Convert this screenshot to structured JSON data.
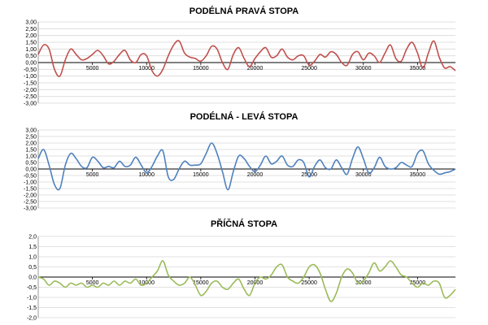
{
  "chart_data": [
    {
      "type": "line",
      "title": "PODÉLNÁ PRAVÁ STOPA",
      "xlabel": "",
      "ylabel": "",
      "xlim": [
        0,
        38500
      ],
      "ylim": [
        -3.0,
        3.0
      ],
      "yticks": [
        3.0,
        2.5,
        2.0,
        1.5,
        1.0,
        0.5,
        0.0,
        -0.5,
        -1.0,
        -1.5,
        -2.0,
        -2.5,
        -3.0
      ],
      "ytick_labels": [
        "3,00",
        "2,50",
        "2,00",
        "1,50",
        "1,00",
        "0,50",
        "0,00",
        "-0,50",
        "-1,00",
        "-1,50",
        "-2,00",
        "-2,50",
        "-3,00"
      ],
      "xticks": [
        5000,
        10000,
        15000,
        20000,
        25000,
        30000,
        35000
      ],
      "xtick_labels": [
        "5000",
        "10000",
        "15000",
        "20000",
        "25000",
        "30000",
        "35000"
      ],
      "grid": true,
      "color": "#c0504d",
      "series": [
        {
          "x": [
            0,
            500,
            1000,
            1500,
            2000,
            2500,
            3000,
            3500,
            4000,
            4500,
            5000,
            5500,
            6000,
            6500,
            7000,
            7500,
            8000,
            8500,
            9000,
            9500,
            10000,
            10500,
            11000,
            11500,
            12000,
            12500,
            13000,
            13500,
            14000,
            14500,
            15000,
            15500,
            16000,
            16500,
            17000,
            17500,
            18000,
            18500,
            19000,
            19500,
            20000,
            20500,
            21000,
            21500,
            22000,
            22500,
            23000,
            23500,
            24000,
            24500,
            25000,
            25500,
            26000,
            26500,
            27000,
            27500,
            28000,
            28500,
            29000,
            29500,
            30000,
            30500,
            31000,
            31500,
            32000,
            32500,
            33000,
            33500,
            34000,
            34500,
            35000,
            35500,
            36000,
            36500,
            37000,
            37500,
            38000,
            38500
          ],
          "y": [
            0.6,
            1.3,
            1.0,
            -0.5,
            -1.0,
            0.2,
            1.0,
            0.6,
            0.2,
            0.3,
            0.6,
            0.9,
            0.5,
            -0.1,
            0.1,
            0.6,
            0.9,
            0.2,
            0.0,
            0.6,
            0.5,
            -0.6,
            -1.0,
            -0.5,
            0.5,
            1.3,
            1.6,
            0.7,
            0.4,
            0.3,
            0.1,
            0.5,
            1.2,
            1.0,
            0.0,
            -0.5,
            0.6,
            1.1,
            0.3,
            -0.3,
            0.3,
            0.8,
            1.1,
            0.4,
            0.5,
            1.0,
            0.4,
            0.2,
            0.5,
            0.5,
            -0.2,
            0.1,
            0.6,
            0.4,
            0.8,
            0.6,
            0.0,
            -0.2,
            0.6,
            0.8,
            0.2,
            0.7,
            0.5,
            0.0,
            0.7,
            1.3,
            0.3,
            0.1,
            1.0,
            1.5,
            0.7,
            -0.4,
            0.7,
            1.6,
            0.4,
            -0.4,
            -0.3,
            -0.6
          ]
        }
      ]
    },
    {
      "type": "line",
      "title": "PODÉLNÁ - LEVÁ STOPA",
      "xlabel": "",
      "ylabel": "",
      "xlim": [
        0,
        38500
      ],
      "ylim": [
        -3.0,
        3.0
      ],
      "yticks": [
        3.0,
        2.5,
        2.0,
        1.5,
        1.0,
        0.5,
        0.0,
        -0.5,
        -1.0,
        -1.5,
        -2.0,
        -2.5,
        -3.0
      ],
      "ytick_labels": [
        "3,00",
        "2,50",
        "2,00",
        "1,50",
        "1,00",
        "0,50",
        "0,00",
        "-0,50",
        "-1,00",
        "-1,50",
        "-2,00",
        "-2,50",
        "-3,00"
      ],
      "xticks": [
        5000,
        10000,
        15000,
        20000,
        25000,
        30000,
        35000
      ],
      "xtick_labels": [
        "5000",
        "10000",
        "15000",
        "20000",
        "25000",
        "30000",
        "35000"
      ],
      "grid": true,
      "color": "#4f81bd",
      "series": [
        {
          "x": [
            0,
            500,
            1000,
            1500,
            2000,
            2500,
            3000,
            3500,
            4000,
            4500,
            5000,
            5500,
            6000,
            6500,
            7000,
            7500,
            8000,
            8500,
            9000,
            9500,
            10000,
            10500,
            11000,
            11500,
            12000,
            12500,
            13000,
            13500,
            14000,
            14500,
            15000,
            15500,
            16000,
            16500,
            17000,
            17500,
            18000,
            18500,
            19000,
            19500,
            20000,
            20500,
            21000,
            21500,
            22000,
            22500,
            23000,
            23500,
            24000,
            24500,
            25000,
            25500,
            26000,
            26500,
            27000,
            27500,
            28000,
            28500,
            29000,
            29500,
            30000,
            30500,
            31000,
            31500,
            32000,
            32500,
            33000,
            33500,
            34000,
            34500,
            35000,
            35500,
            36000,
            36500,
            37000,
            37500,
            38000,
            38500
          ],
          "y": [
            0.8,
            1.5,
            0.3,
            -1.2,
            -1.5,
            0.3,
            1.2,
            0.8,
            0.2,
            0.1,
            0.9,
            0.6,
            0.1,
            0.2,
            0.1,
            0.6,
            0.2,
            0.3,
            0.9,
            0.3,
            -0.3,
            0.2,
            1.0,
            1.4,
            -0.6,
            -0.8,
            0.0,
            0.6,
            0.3,
            0.3,
            0.4,
            1.2,
            2.0,
            1.2,
            -0.2,
            -1.6,
            -0.2,
            1.0,
            0.8,
            0.2,
            -0.2,
            0.3,
            1.0,
            0.4,
            0.6,
            1.0,
            0.3,
            0.2,
            0.7,
            0.5,
            -0.6,
            0.2,
            0.7,
            0.1,
            0.0,
            0.7,
            0.1,
            -0.4,
            0.8,
            1.7,
            0.8,
            -0.3,
            0.1,
            0.9,
            0.2,
            0.0,
            0.1,
            0.5,
            0.3,
            0.2,
            1.2,
            1.4,
            0.4,
            -0.1,
            -0.4,
            -0.3,
            -0.2,
            0.0
          ]
        }
      ]
    },
    {
      "type": "line",
      "title": "PŘÍČNÁ STOPA",
      "xlabel": "",
      "ylabel": "",
      "xlim": [
        0,
        38500
      ],
      "ylim": [
        -2.0,
        2.0
      ],
      "yticks": [
        2.0,
        1.5,
        1.0,
        0.5,
        0.0,
        -0.5,
        -1.0,
        -1.5,
        -2.0
      ],
      "ytick_labels": [
        "2,0",
        "1,5",
        "1,0",
        "0,5",
        "0,0",
        "-0,5",
        "-1,0",
        "-1,5",
        "-2,0"
      ],
      "xticks": [
        5000,
        10000,
        15000,
        20000,
        25000,
        30000,
        35000
      ],
      "xtick_labels": [
        "5000",
        "10000",
        "15000",
        "20000",
        "25000",
        "30000",
        "35000"
      ],
      "grid": true,
      "color": "#9bbb59",
      "series": [
        {
          "x": [
            0,
            500,
            1000,
            1500,
            2000,
            2500,
            3000,
            3500,
            4000,
            4500,
            5000,
            5500,
            6000,
            6500,
            7000,
            7500,
            8000,
            8500,
            9000,
            9500,
            10000,
            10500,
            11000,
            11500,
            12000,
            12500,
            13000,
            13500,
            14000,
            14500,
            15000,
            15500,
            16000,
            16500,
            17000,
            17500,
            18000,
            18500,
            19000,
            19500,
            20000,
            20500,
            21000,
            21500,
            22000,
            22500,
            23000,
            23500,
            24000,
            24500,
            25000,
            25500,
            26000,
            26500,
            27000,
            27500,
            28000,
            28500,
            29000,
            29500,
            30000,
            30500,
            31000,
            31500,
            32000,
            32500,
            33000,
            33500,
            34000,
            34500,
            35000,
            35500,
            36000,
            36500,
            37000,
            37500,
            38000,
            38500
          ],
          "y": [
            0.0,
            -0.1,
            -0.4,
            -0.2,
            -0.3,
            -0.5,
            -0.3,
            -0.4,
            -0.3,
            -0.5,
            -0.4,
            -0.5,
            -0.3,
            -0.4,
            -0.2,
            -0.4,
            -0.2,
            -0.3,
            -0.1,
            -0.4,
            -0.3,
            0.0,
            0.3,
            0.8,
            0.1,
            -0.2,
            -0.4,
            -0.3,
            0.0,
            -0.4,
            -0.9,
            -0.7,
            -0.3,
            -0.2,
            -0.5,
            -0.6,
            -0.3,
            -0.1,
            -0.6,
            -0.9,
            -0.3,
            0.0,
            -0.1,
            0.1,
            0.5,
            0.6,
            0.0,
            -0.2,
            -0.3,
            0.0,
            0.5,
            0.6,
            0.2,
            -0.6,
            -1.2,
            -0.8,
            0.0,
            0.4,
            0.2,
            -0.3,
            -0.2,
            0.2,
            0.7,
            0.3,
            0.5,
            0.8,
            0.5,
            0.1,
            0.0,
            -0.3,
            -0.5,
            -0.3,
            -0.4,
            -0.2,
            -0.3,
            -1.0,
            -0.9,
            -0.6
          ]
        }
      ]
    }
  ]
}
